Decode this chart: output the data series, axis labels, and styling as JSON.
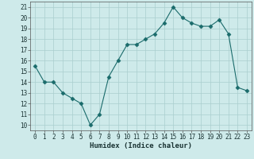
{
  "x": [
    0,
    1,
    2,
    3,
    4,
    5,
    6,
    7,
    8,
    9,
    10,
    11,
    12,
    13,
    14,
    15,
    16,
    17,
    18,
    19,
    20,
    21,
    22,
    23
  ],
  "y": [
    15.5,
    14.0,
    14.0,
    13.0,
    12.5,
    12.0,
    10.0,
    11.0,
    14.5,
    16.0,
    17.5,
    17.5,
    18.0,
    18.5,
    19.5,
    21.0,
    20.0,
    19.5,
    19.2,
    19.2,
    19.8,
    18.5,
    13.5,
    13.2
  ],
  "title": "",
  "xlabel": "Humidex (Indice chaleur)",
  "ylabel": "",
  "ylim": [
    9.5,
    21.5
  ],
  "xlim": [
    -0.5,
    23.5
  ],
  "yticks": [
    10,
    11,
    12,
    13,
    14,
    15,
    16,
    17,
    18,
    19,
    20,
    21
  ],
  "xticks": [
    0,
    1,
    2,
    3,
    4,
    5,
    6,
    7,
    8,
    9,
    10,
    11,
    12,
    13,
    14,
    15,
    16,
    17,
    18,
    19,
    20,
    21,
    22,
    23
  ],
  "line_color": "#1a6b6b",
  "marker": "D",
  "marker_size": 2.5,
  "bg_color": "#ceeaea",
  "grid_color": "#aacece",
  "tick_fontsize": 5.5,
  "label_fontsize": 6.5
}
